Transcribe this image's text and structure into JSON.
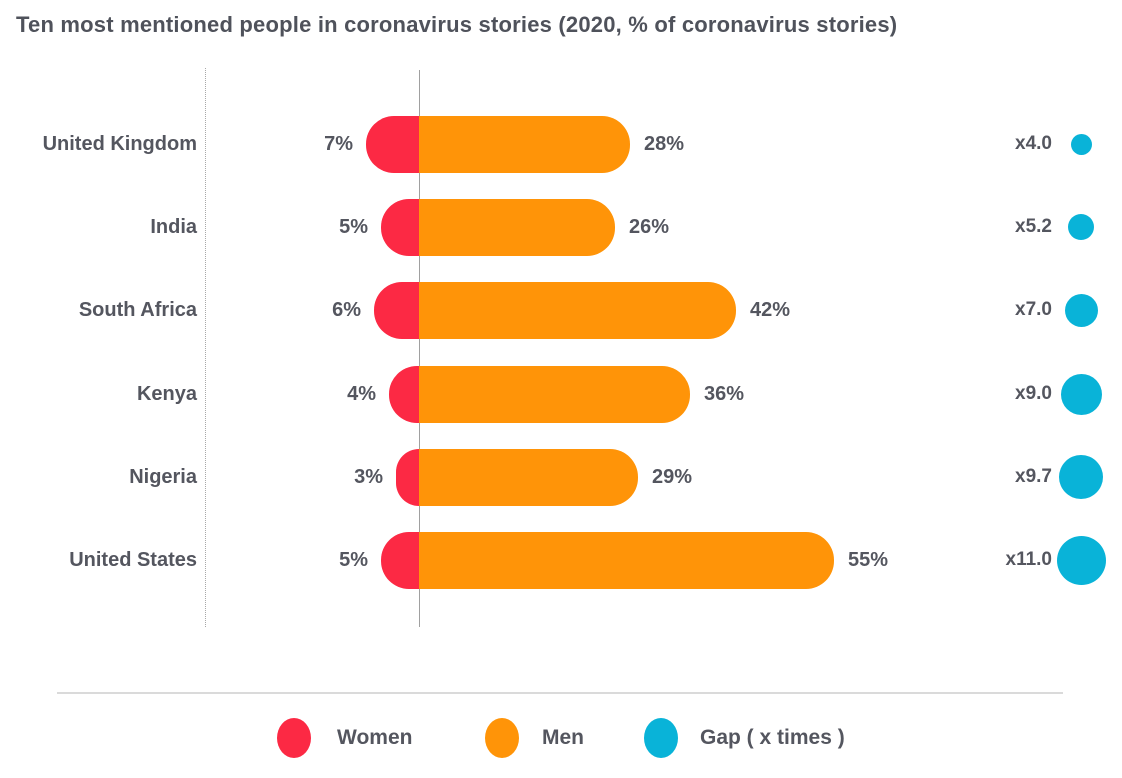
{
  "title": "Ten most mentioned people in coronavirus stories (2020, % of coronavirus stories)",
  "colors": {
    "women": "#FC2944",
    "men": "#FF9408",
    "gap": "#09B3D8",
    "text": "#54565F",
    "axis_line": "#A0A0A0",
    "separator": "#DADADA"
  },
  "legend": {
    "women_label": "Women",
    "men_label": "Men",
    "gap_label": "Gap ( x times )"
  },
  "chart_data": {
    "type": "bar",
    "orientation": "horizontal-diverging",
    "title": "Ten most mentioned people in coronavirus stories (2020, % of coronavirus stories)",
    "categories": [
      "United Kingdom",
      "India",
      "South Africa",
      "Kenya",
      "Nigeria",
      "United States"
    ],
    "series": [
      {
        "name": "Women",
        "unit": "% of coronavirus stories",
        "values": [
          7,
          5,
          6,
          4,
          3,
          5
        ]
      },
      {
        "name": "Men",
        "unit": "% of coronavirus stories",
        "values": [
          28,
          26,
          42,
          36,
          29,
          55
        ]
      },
      {
        "name": "Gap (x times)",
        "unit": "ratio men/women",
        "values": [
          4.0,
          5.2,
          7.0,
          9.0,
          9.7,
          11.0
        ]
      }
    ],
    "value_labels": {
      "women": [
        "7%",
        "5%",
        "6%",
        "4%",
        "3%",
        "5%"
      ],
      "men": [
        "28%",
        "26%",
        "42%",
        "36%",
        "29%",
        "55%"
      ],
      "gap": [
        "x4.0",
        "x5.2",
        "x7.0",
        "x9.0",
        "x9.7",
        "x11.0"
      ]
    },
    "legend_position": "bottom",
    "grid": false,
    "xlim_pct": [
      0,
      55
    ]
  }
}
